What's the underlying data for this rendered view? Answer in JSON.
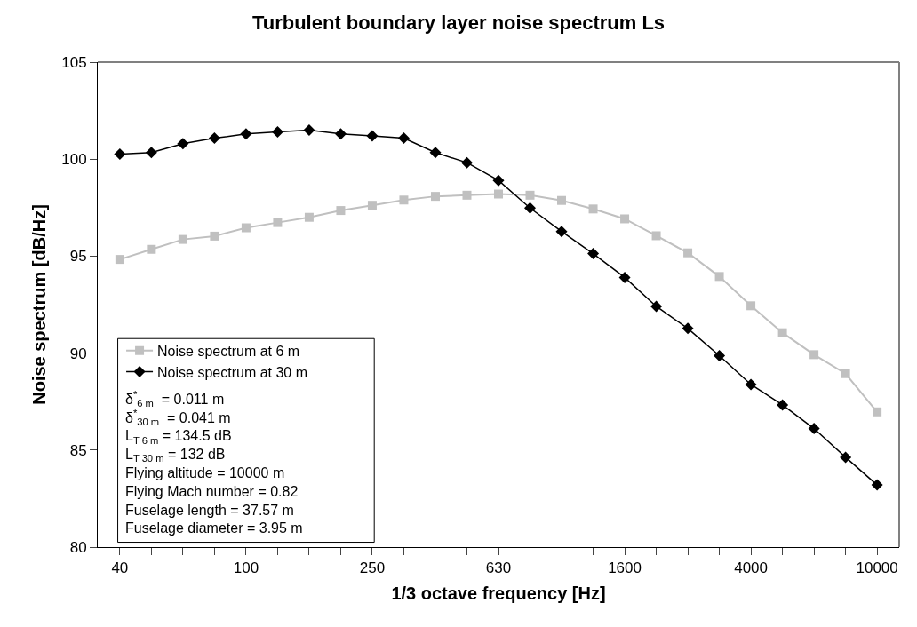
{
  "chart_data": {
    "type": "line",
    "title": "Turbulent boundary layer noise spectrum Ls",
    "xlabel": "1/3 octave frequency [Hz]",
    "ylabel": "Noise spectrum [dB/Hz]",
    "categories": [
      "40",
      null,
      null,
      null,
      "100",
      null,
      null,
      null,
      "250",
      null,
      null,
      null,
      "630",
      null,
      null,
      null,
      "1600",
      null,
      null,
      null,
      "4000",
      null,
      null,
      null,
      "10000"
    ],
    "series": [
      {
        "name": "Noise spectrum at 6 m",
        "color": "#c0c0c0",
        "marker": "square",
        "values": [
          94.83,
          95.35,
          95.86,
          96.03,
          96.46,
          96.73,
          97.0,
          97.35,
          97.62,
          97.89,
          98.08,
          98.14,
          98.2,
          98.14,
          97.87,
          97.43,
          96.92,
          96.05,
          95.17,
          93.95,
          92.44,
          91.05,
          89.92,
          88.94,
          86.97
        ]
      },
      {
        "name": "Noise spectrum at 30 m",
        "color": "#000000",
        "marker": "diamond",
        "values": [
          100.26,
          100.34,
          100.8,
          101.08,
          101.3,
          101.4,
          101.5,
          101.3,
          101.2,
          101.08,
          100.34,
          99.82,
          98.9,
          97.48,
          96.27,
          95.13,
          93.9,
          92.41,
          91.27,
          89.87,
          88.38,
          87.33,
          86.11,
          84.63,
          83.2
        ]
      }
    ],
    "ylim": [
      80,
      105
    ],
    "yticks": [
      80,
      85,
      90,
      95,
      100,
      105
    ],
    "legend": "bottom left",
    "line_style": "solid",
    "annotations": [
      "δ$^{*}$$_{6 m}$  = 0.011 m",
      "δ$^{*}$$_{30 m}$  = 0.041 m",
      "L$_{T 6 m}$ = 134.5 dB",
      "L$_{T 30 m}$ = 132 dB",
      "Flying altitude = 10000 m",
      "Flying Mach number = 0.82",
      "Fuselage length = 37.57 m",
      "Fuselage diameter = 3.95 m"
    ]
  }
}
